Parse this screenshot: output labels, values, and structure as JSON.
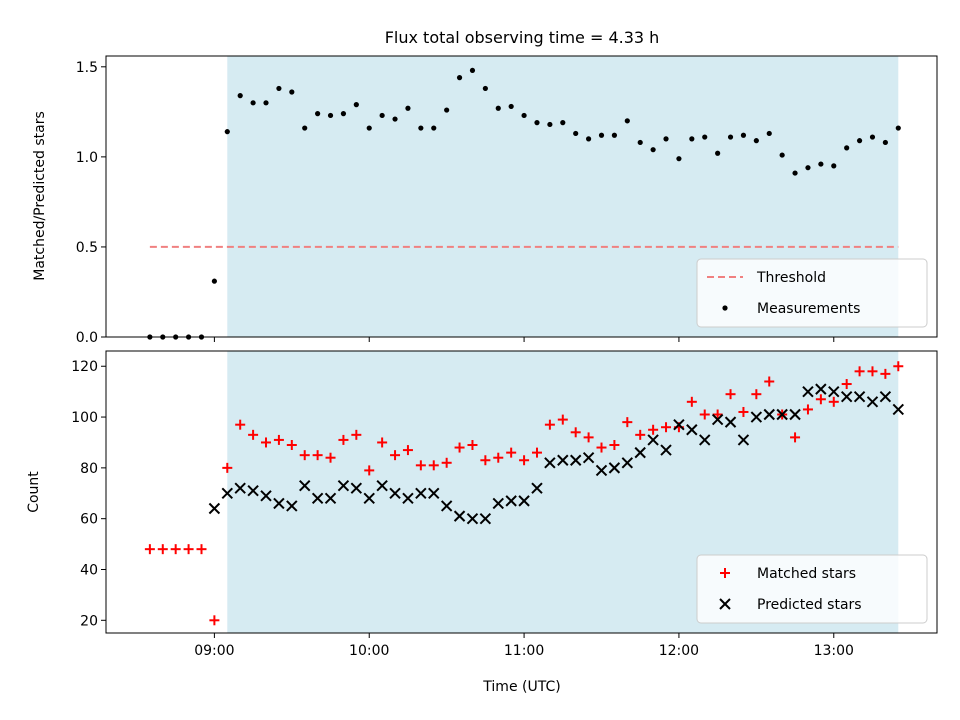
{
  "chart_data": [
    {
      "type": "scatter",
      "title": "Flux total observing time = 4.33 h",
      "xlabel": "",
      "ylabel": "Matched/Predicted stars",
      "ylim": [
        0,
        1.56
      ],
      "yticks": [
        {
          "value": 0.0,
          "label": "0.0"
        },
        {
          "value": 0.5,
          "label": "0.5"
        },
        {
          "value": 1.0,
          "label": "1.0"
        },
        {
          "value": 1.5,
          "label": "1.5"
        }
      ],
      "shaded_span": [
        "09:05",
        "13:25"
      ],
      "threshold": {
        "name": "Threshold",
        "value": 0.5,
        "x_start": "08:35",
        "x_end": "13:25",
        "color": "#f08080"
      },
      "series": [
        {
          "name": "Measurements",
          "marker": "dot",
          "color": "#000000",
          "points": [
            [
              "08:35",
              0.0
            ],
            [
              "08:40",
              0.0
            ],
            [
              "08:45",
              0.0
            ],
            [
              "08:50",
              0.0
            ],
            [
              "08:55",
              0.0
            ],
            [
              "09:00",
              0.31
            ],
            [
              "09:05",
              1.14
            ],
            [
              "09:10",
              1.34
            ],
            [
              "09:15",
              1.3
            ],
            [
              "09:20",
              1.3
            ],
            [
              "09:25",
              1.38
            ],
            [
              "09:30",
              1.36
            ],
            [
              "09:35",
              1.16
            ],
            [
              "09:40",
              1.24
            ],
            [
              "09:45",
              1.23
            ],
            [
              "09:50",
              1.24
            ],
            [
              "09:55",
              1.29
            ],
            [
              "10:00",
              1.16
            ],
            [
              "10:05",
              1.23
            ],
            [
              "10:10",
              1.21
            ],
            [
              "10:15",
              1.27
            ],
            [
              "10:20",
              1.16
            ],
            [
              "10:25",
              1.16
            ],
            [
              "10:30",
              1.26
            ],
            [
              "10:35",
              1.44
            ],
            [
              "10:40",
              1.48
            ],
            [
              "10:45",
              1.38
            ],
            [
              "10:50",
              1.27
            ],
            [
              "10:55",
              1.28
            ],
            [
              "11:00",
              1.23
            ],
            [
              "11:05",
              1.19
            ],
            [
              "11:10",
              1.18
            ],
            [
              "11:15",
              1.19
            ],
            [
              "11:20",
              1.13
            ],
            [
              "11:25",
              1.1
            ],
            [
              "11:30",
              1.12
            ],
            [
              "11:35",
              1.12
            ],
            [
              "11:40",
              1.2
            ],
            [
              "11:45",
              1.08
            ],
            [
              "11:50",
              1.04
            ],
            [
              "11:55",
              1.1
            ],
            [
              "12:00",
              0.99
            ],
            [
              "12:05",
              1.1
            ],
            [
              "12:10",
              1.11
            ],
            [
              "12:15",
              1.02
            ],
            [
              "12:20",
              1.11
            ],
            [
              "12:25",
              1.12
            ],
            [
              "12:30",
              1.09
            ],
            [
              "12:35",
              1.13
            ],
            [
              "12:40",
              1.01
            ],
            [
              "12:45",
              0.91
            ],
            [
              "12:50",
              0.94
            ],
            [
              "12:55",
              0.96
            ],
            [
              "13:00",
              0.95
            ],
            [
              "13:05",
              1.05
            ],
            [
              "13:10",
              1.09
            ],
            [
              "13:15",
              1.11
            ],
            [
              "13:20",
              1.08
            ],
            [
              "13:25",
              1.16
            ]
          ]
        }
      ],
      "legend": {
        "position": "lower-right",
        "entries": [
          "Threshold",
          "Measurements"
        ]
      }
    },
    {
      "type": "scatter",
      "title": "",
      "xlabel": "Time (UTC)",
      "ylabel": "Count",
      "ylim": [
        15,
        126
      ],
      "yticks": [
        {
          "value": 20,
          "label": "20"
        },
        {
          "value": 40,
          "label": "40"
        },
        {
          "value": 60,
          "label": "60"
        },
        {
          "value": 80,
          "label": "80"
        },
        {
          "value": 100,
          "label": "100"
        },
        {
          "value": 120,
          "label": "120"
        }
      ],
      "shaded_span": [
        "09:05",
        "13:25"
      ],
      "series": [
        {
          "name": "Matched stars",
          "marker": "plus",
          "color": "#ff0000",
          "points": [
            [
              "08:35",
              48
            ],
            [
              "08:40",
              48
            ],
            [
              "08:45",
              48
            ],
            [
              "08:50",
              48
            ],
            [
              "08:55",
              48
            ],
            [
              "09:00",
              20
            ],
            [
              "09:05",
              80
            ],
            [
              "09:10",
              97
            ],
            [
              "09:15",
              93
            ],
            [
              "09:20",
              90
            ],
            [
              "09:25",
              91
            ],
            [
              "09:30",
              89
            ],
            [
              "09:35",
              85
            ],
            [
              "09:40",
              85
            ],
            [
              "09:45",
              84
            ],
            [
              "09:50",
              91
            ],
            [
              "09:55",
              93
            ],
            [
              "10:00",
              79
            ],
            [
              "10:05",
              90
            ],
            [
              "10:10",
              85
            ],
            [
              "10:15",
              87
            ],
            [
              "10:20",
              81
            ],
            [
              "10:25",
              81
            ],
            [
              "10:30",
              82
            ],
            [
              "10:35",
              88
            ],
            [
              "10:40",
              89
            ],
            [
              "10:45",
              83
            ],
            [
              "10:50",
              84
            ],
            [
              "10:55",
              86
            ],
            [
              "11:00",
              83
            ],
            [
              "11:05",
              86
            ],
            [
              "11:10",
              97
            ],
            [
              "11:15",
              99
            ],
            [
              "11:20",
              94
            ],
            [
              "11:25",
              92
            ],
            [
              "11:30",
              88
            ],
            [
              "11:35",
              89
            ],
            [
              "11:40",
              98
            ],
            [
              "11:45",
              93
            ],
            [
              "11:50",
              95
            ],
            [
              "11:55",
              96
            ],
            [
              "12:00",
              96
            ],
            [
              "12:05",
              106
            ],
            [
              "12:10",
              101
            ],
            [
              "12:15",
              101
            ],
            [
              "12:20",
              109
            ],
            [
              "12:25",
              102
            ],
            [
              "12:30",
              109
            ],
            [
              "12:35",
              114
            ],
            [
              "12:40",
              101
            ],
            [
              "12:45",
              92
            ],
            [
              "12:50",
              103
            ],
            [
              "12:55",
              107
            ],
            [
              "13:00",
              106
            ],
            [
              "13:05",
              113
            ],
            [
              "13:10",
              118
            ],
            [
              "13:15",
              118
            ],
            [
              "13:20",
              117
            ],
            [
              "13:25",
              120
            ]
          ]
        },
        {
          "name": "Predicted stars",
          "marker": "x",
          "color": "#000000",
          "points": [
            [
              "09:00",
              64
            ],
            [
              "09:05",
              70
            ],
            [
              "09:10",
              72
            ],
            [
              "09:15",
              71
            ],
            [
              "09:20",
              69
            ],
            [
              "09:25",
              66
            ],
            [
              "09:30",
              65
            ],
            [
              "09:35",
              73
            ],
            [
              "09:40",
              68
            ],
            [
              "09:45",
              68
            ],
            [
              "09:50",
              73
            ],
            [
              "09:55",
              72
            ],
            [
              "10:00",
              68
            ],
            [
              "10:05",
              73
            ],
            [
              "10:10",
              70
            ],
            [
              "10:15",
              68
            ],
            [
              "10:20",
              70
            ],
            [
              "10:25",
              70
            ],
            [
              "10:30",
              65
            ],
            [
              "10:35",
              61
            ],
            [
              "10:40",
              60
            ],
            [
              "10:45",
              60
            ],
            [
              "10:50",
              66
            ],
            [
              "10:55",
              67
            ],
            [
              "11:00",
              67
            ],
            [
              "11:05",
              72
            ],
            [
              "11:10",
              82
            ],
            [
              "11:15",
              83
            ],
            [
              "11:20",
              83
            ],
            [
              "11:25",
              84
            ],
            [
              "11:30",
              79
            ],
            [
              "11:35",
              80
            ],
            [
              "11:40",
              82
            ],
            [
              "11:45",
              86
            ],
            [
              "11:50",
              91
            ],
            [
              "11:55",
              87
            ],
            [
              "12:00",
              97
            ],
            [
              "12:05",
              95
            ],
            [
              "12:10",
              91
            ],
            [
              "12:15",
              99
            ],
            [
              "12:20",
              98
            ],
            [
              "12:25",
              91
            ],
            [
              "12:30",
              100
            ],
            [
              "12:35",
              101
            ],
            [
              "12:40",
              101
            ],
            [
              "12:45",
              101
            ],
            [
              "12:50",
              110
            ],
            [
              "12:55",
              111
            ],
            [
              "13:00",
              110
            ],
            [
              "13:05",
              108
            ],
            [
              "13:10",
              108
            ],
            [
              "13:15",
              106
            ],
            [
              "13:20",
              108
            ],
            [
              "13:25",
              103
            ]
          ]
        }
      ],
      "legend": {
        "position": "lower-right",
        "entries": [
          "Matched stars",
          "Predicted stars"
        ]
      }
    }
  ],
  "xaxis": {
    "range": [
      "08:18",
      "13:40"
    ],
    "ticks": [
      "09:00",
      "10:00",
      "11:00",
      "12:00",
      "13:00"
    ]
  },
  "colors": {
    "shade": "#add8e6",
    "threshold": "#f08080",
    "matched": "#ff0000",
    "predicted": "#000000"
  }
}
